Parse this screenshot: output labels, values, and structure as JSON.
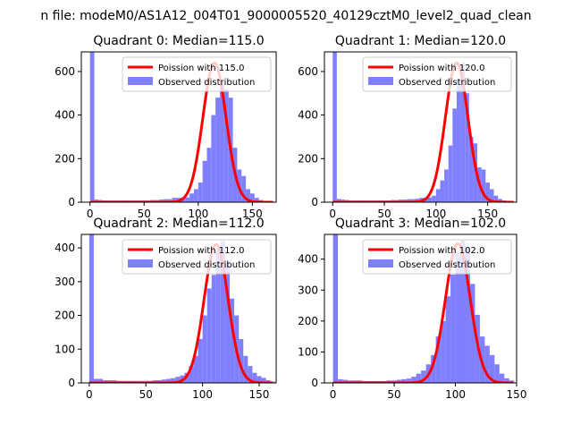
{
  "suptitle": "n file: modeM0/AS1A12_004T01_9000005520_40129cztM0_level2_quad_clean",
  "colors": {
    "fit": "#ff0000",
    "hist": "#8080ff",
    "axis": "#000000"
  },
  "chart_data": [
    {
      "type": "bar",
      "title": "Quadrant 0: Median=115.0",
      "xlim": [
        -8,
        172
      ],
      "ylim": [
        0,
        690
      ],
      "xticks": [
        0,
        50,
        100,
        150
      ],
      "yticks": [
        0,
        200,
        400,
        600
      ],
      "legend": {
        "placement": "top-right",
        "entries": [
          "Poission with 115.0",
          "Observed distribution"
        ]
      },
      "median": 115.0,
      "bins": {
        "x": [
          0,
          4,
          8,
          12,
          16,
          20,
          24,
          28,
          32,
          36,
          40,
          44,
          48,
          52,
          56,
          60,
          64,
          68,
          72,
          76,
          80,
          84,
          88,
          92,
          96,
          100,
          104,
          108,
          112,
          116,
          120,
          124,
          128,
          132,
          136,
          140,
          144,
          148,
          152,
          156,
          160,
          164,
          168
        ],
        "width": 4,
        "counts": [
          690,
          12,
          10,
          8,
          8,
          8,
          8,
          8,
          8,
          8,
          8,
          8,
          8,
          8,
          10,
          10,
          12,
          14,
          14,
          20,
          20,
          22,
          22,
          40,
          60,
          90,
          190,
          250,
          400,
          480,
          550,
          520,
          480,
          250,
          150,
          120,
          60,
          40,
          20,
          10,
          5,
          3,
          2
        ]
      },
      "fit": {
        "label": "Poission with 115.0",
        "mean": 115.0,
        "peak": 640
      }
    },
    {
      "type": "bar",
      "title": "Quadrant 1: Median=120.0",
      "xlim": [
        -8,
        178
      ],
      "ylim": [
        0,
        690
      ],
      "xticks": [
        0,
        50,
        100,
        150
      ],
      "yticks": [
        0,
        200,
        400,
        600
      ],
      "legend": {
        "placement": "top-right",
        "entries": [
          "Poission with 120.0",
          "Observed distribution"
        ]
      },
      "median": 120.0,
      "bins": {
        "x": [
          0,
          4,
          8,
          12,
          16,
          20,
          24,
          28,
          32,
          36,
          40,
          44,
          48,
          52,
          56,
          60,
          64,
          68,
          72,
          76,
          80,
          84,
          88,
          92,
          96,
          100,
          104,
          108,
          112,
          116,
          120,
          124,
          128,
          132,
          136,
          140,
          144,
          148,
          152,
          156,
          160,
          164,
          168,
          172
        ],
        "width": 4,
        "counts": [
          690,
          15,
          12,
          10,
          8,
          8,
          8,
          8,
          8,
          8,
          8,
          8,
          8,
          8,
          10,
          10,
          12,
          12,
          14,
          14,
          16,
          20,
          20,
          22,
          30,
          60,
          100,
          150,
          260,
          430,
          560,
          640,
          500,
          300,
          270,
          160,
          150,
          90,
          60,
          30,
          15,
          8,
          4,
          2
        ]
      },
      "fit": {
        "label": "Poission with 120.0",
        "mean": 120.0,
        "peak": 640
      }
    },
    {
      "type": "bar",
      "title": "Quadrant 2: Median=112.0",
      "xlim": [
        -7,
        165
      ],
      "ylim": [
        0,
        440
      ],
      "xticks": [
        0,
        50,
        100,
        150
      ],
      "yticks": [
        0,
        100,
        200,
        300,
        400
      ],
      "legend": {
        "placement": "top-right",
        "entries": [
          "Poission with 112.0",
          "Observed distribution"
        ]
      },
      "median": 112.0,
      "bins": {
        "x": [
          0,
          4,
          8,
          12,
          16,
          20,
          24,
          28,
          32,
          36,
          40,
          44,
          48,
          52,
          56,
          60,
          64,
          68,
          72,
          76,
          80,
          84,
          88,
          92,
          96,
          100,
          104,
          108,
          112,
          116,
          120,
          124,
          128,
          132,
          136,
          140,
          144,
          148,
          152,
          156,
          160
        ],
        "width": 4,
        "counts": [
          440,
          12,
          12,
          8,
          8,
          8,
          6,
          6,
          6,
          6,
          6,
          6,
          6,
          6,
          8,
          8,
          10,
          12,
          14,
          18,
          22,
          30,
          50,
          80,
          130,
          200,
          280,
          320,
          400,
          420,
          360,
          250,
          200,
          130,
          80,
          50,
          30,
          20,
          15,
          8,
          4
        ]
      },
      "fit": {
        "label": "Poission with 112.0",
        "mean": 112.0,
        "peak": 410
      }
    },
    {
      "type": "bar",
      "title": "Quadrant 3: Median=102.0",
      "xlim": [
        -7,
        150
      ],
      "ylim": [
        0,
        480
      ],
      "xticks": [
        0,
        50,
        100,
        150
      ],
      "yticks": [
        0,
        100,
        200,
        300,
        400
      ],
      "legend": {
        "placement": "top-right",
        "entries": [
          "Poission with 102.0",
          "Observed distribution"
        ]
      },
      "median": 102.0,
      "bins": {
        "x": [
          0,
          4,
          8,
          12,
          16,
          20,
          24,
          28,
          32,
          36,
          40,
          44,
          48,
          52,
          56,
          60,
          64,
          68,
          72,
          76,
          80,
          84,
          88,
          92,
          96,
          100,
          104,
          108,
          112,
          116,
          120,
          124,
          128,
          132,
          136,
          140,
          144
        ],
        "width": 4,
        "counts": [
          480,
          12,
          10,
          8,
          8,
          8,
          6,
          6,
          6,
          6,
          6,
          8,
          8,
          10,
          12,
          14,
          20,
          30,
          40,
          60,
          90,
          150,
          200,
          280,
          350,
          420,
          460,
          440,
          320,
          220,
          150,
          120,
          90,
          60,
          30,
          15,
          8
        ]
      },
      "fit": {
        "label": "Poission with 102.0",
        "mean": 102.0,
        "peak": 450
      }
    }
  ]
}
